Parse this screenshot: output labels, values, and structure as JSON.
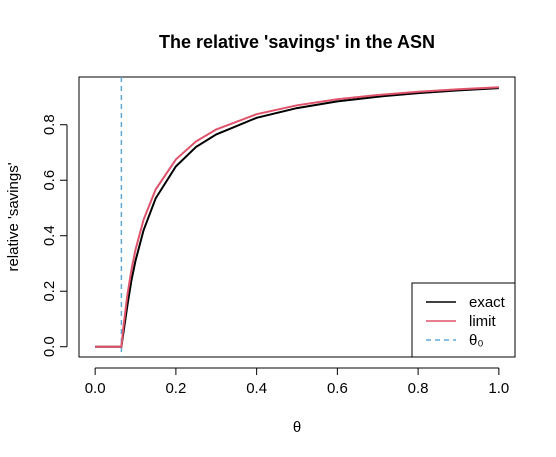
{
  "chart_data": {
    "type": "line",
    "title": "The relative 'savings' in the ASN",
    "xlabel": "θ",
    "ylabel": "relative 'savings'",
    "x": [
      0,
      0.065,
      0.07,
      0.08,
      0.09,
      0.1,
      0.12,
      0.15,
      0.2,
      0.25,
      0.3,
      0.4,
      0.5,
      0.6,
      0.7,
      0.8,
      0.9,
      1.0
    ],
    "series": [
      {
        "name": "exact",
        "color": "#000000",
        "values": [
          0,
          0,
          0.05,
          0.15,
          0.24,
          0.31,
          0.42,
          0.535,
          0.65,
          0.72,
          0.765,
          0.825,
          0.86,
          0.884,
          0.901,
          0.914,
          0.924,
          0.932
        ]
      },
      {
        "name": "limit",
        "color": "#df536b",
        "values": [
          0,
          0,
          0.071,
          0.188,
          0.278,
          0.35,
          0.458,
          0.567,
          0.675,
          0.74,
          0.783,
          0.838,
          0.87,
          0.892,
          0.907,
          0.919,
          0.928,
          0.935
        ]
      }
    ],
    "vline": {
      "name": "θ₀",
      "value": 0.065,
      "color": "#61a8d8"
    },
    "xlim": [
      -0.04,
      1.04
    ],
    "ylim": [
      -0.037,
      0.972
    ],
    "xticks": [
      {
        "value": 0,
        "label": "0.0"
      },
      0.2,
      0.4,
      0.6,
      0.8,
      {
        "value": 1,
        "label": "1.0"
      }
    ],
    "yticks": [
      {
        "value": 0,
        "label": "0.0"
      },
      0.2,
      0.4,
      0.6,
      0.8
    ],
    "legend": "bottom-right"
  }
}
